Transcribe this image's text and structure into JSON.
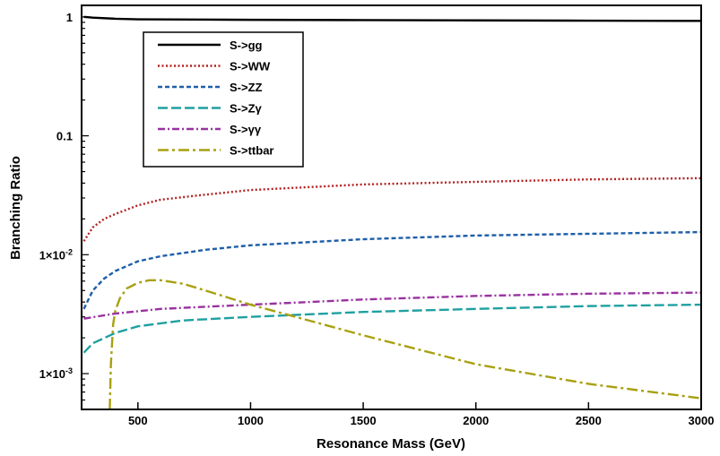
{
  "chart_data": {
    "type": "line",
    "title": "",
    "xlabel": "Resonance Mass (GeV)",
    "ylabel": "Branching Ratio",
    "xlim": [
      250,
      3000
    ],
    "ylim": [
      0.0005,
      1.25
    ],
    "yscale": "log",
    "x_ticks": [
      500,
      1000,
      1500,
      2000,
      2500,
      3000
    ],
    "x_tick_labels": [
      "500",
      "1000",
      "1500",
      "2000",
      "2500",
      "3000"
    ],
    "y_ticks": [
      0.001,
      0.01,
      0.1,
      1
    ],
    "y_tick_labels": [
      "1×10",
      "1×10",
      "0.1",
      "1"
    ],
    "y_tick_exponents": [
      "-3",
      "-2",
      "",
      ""
    ],
    "legend_position": "top-left",
    "grid": false,
    "series": [
      {
        "name": "S->gg",
        "color": "#000000",
        "style": "solid",
        "x": [
          260,
          300,
          400,
          500,
          750,
          1000,
          1500,
          2000,
          2500,
          3000
        ],
        "y": [
          1.0,
          0.985,
          0.965,
          0.955,
          0.95,
          0.945,
          0.94,
          0.935,
          0.93,
          0.925
        ]
      },
      {
        "name": "S->WW",
        "color": "#b22222",
        "style": "dotted",
        "x": [
          260,
          300,
          350,
          400,
          500,
          600,
          800,
          1000,
          1500,
          2000,
          2500,
          3000
        ],
        "y": [
          0.013,
          0.017,
          0.02,
          0.022,
          0.026,
          0.029,
          0.032,
          0.035,
          0.039,
          0.041,
          0.043,
          0.044
        ]
      },
      {
        "name": "S->ZZ",
        "color": "#1f5fa8",
        "style": "dashed",
        "x": [
          260,
          300,
          350,
          400,
          500,
          600,
          800,
          1000,
          1500,
          2000,
          2500,
          3000
        ],
        "y": [
          0.0035,
          0.005,
          0.0063,
          0.0073,
          0.0088,
          0.0097,
          0.011,
          0.012,
          0.0135,
          0.0145,
          0.015,
          0.0155
        ]
      },
      {
        "name": "S->Zγ",
        "color": "#20a0a0",
        "style": "longdash",
        "x": [
          260,
          300,
          400,
          500,
          700,
          1000,
          1500,
          2000,
          2500,
          3000
        ],
        "y": [
          0.0015,
          0.0018,
          0.0022,
          0.0025,
          0.0028,
          0.003,
          0.0033,
          0.0035,
          0.0037,
          0.0038
        ]
      },
      {
        "name": "S->γγ",
        "color": "#9932a0",
        "style": "dashdot",
        "x": [
          260,
          400,
          600,
          1000,
          1500,
          2000,
          2500,
          3000
        ],
        "y": [
          0.0029,
          0.0032,
          0.0035,
          0.0038,
          0.0042,
          0.0045,
          0.0047,
          0.0048
        ]
      },
      {
        "name": "S->ttbar",
        "color": "#a8a010",
        "style": "dashdotlong",
        "x": [
          375,
          380,
          390,
          400,
          420,
          450,
          500,
          550,
          600,
          700,
          800,
          1000,
          1200,
          1500,
          2000,
          2500,
          3000
        ],
        "y": [
          0.0005,
          0.0012,
          0.0026,
          0.0034,
          0.0043,
          0.0052,
          0.0058,
          0.0061,
          0.0061,
          0.0057,
          0.005,
          0.0038,
          0.003,
          0.0021,
          0.0012,
          0.00082,
          0.00062
        ]
      }
    ]
  }
}
